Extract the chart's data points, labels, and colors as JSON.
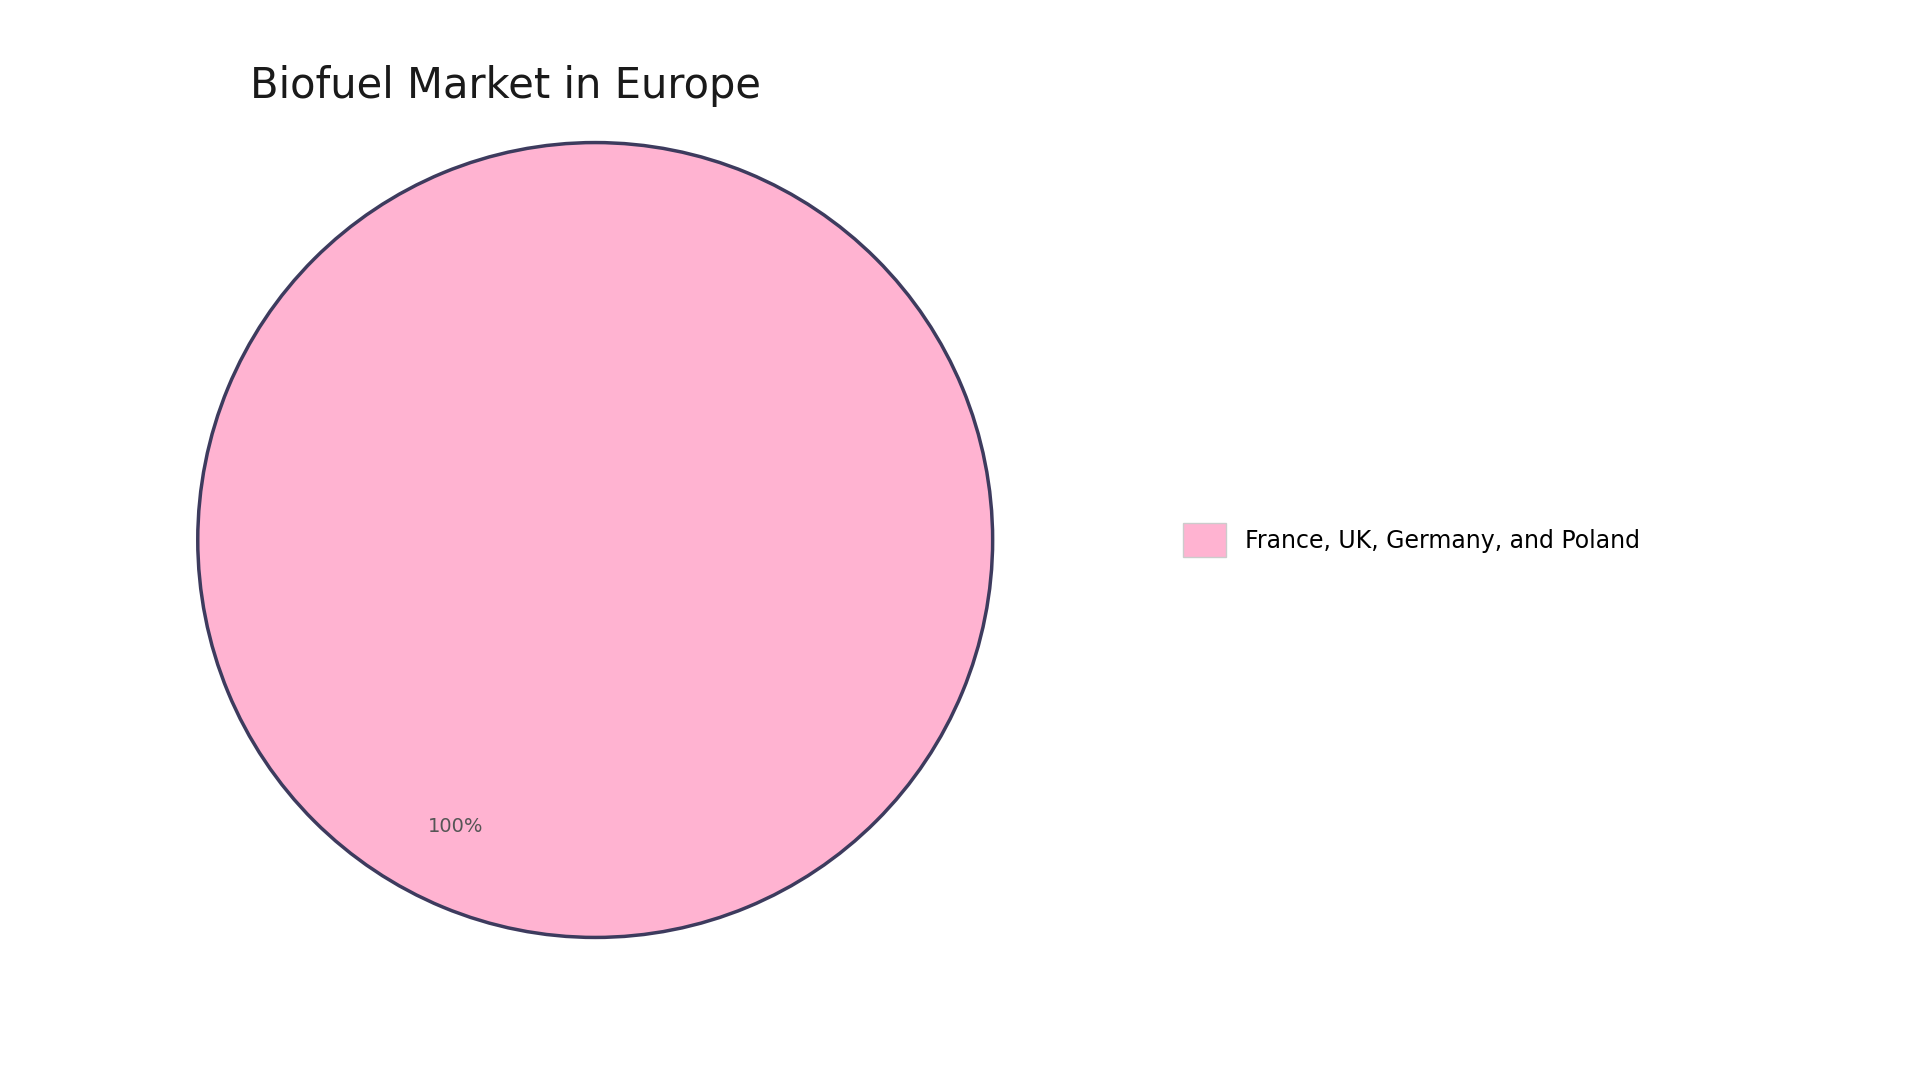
{
  "title": "Biofuel Market in Europe",
  "slices": [
    100
  ],
  "labels": [
    "France, UK, Germany, and Poland"
  ],
  "colors": [
    "#FFB3D1"
  ],
  "edge_color": "#3D3B5E",
  "edge_width": 2.5,
  "background_color": "#ffffff",
  "title_fontsize": 30,
  "title_fontcolor": "#1a1a1a",
  "label_fontsize": 17,
  "pct_fontsize": 14,
  "pct_color": "#555555"
}
